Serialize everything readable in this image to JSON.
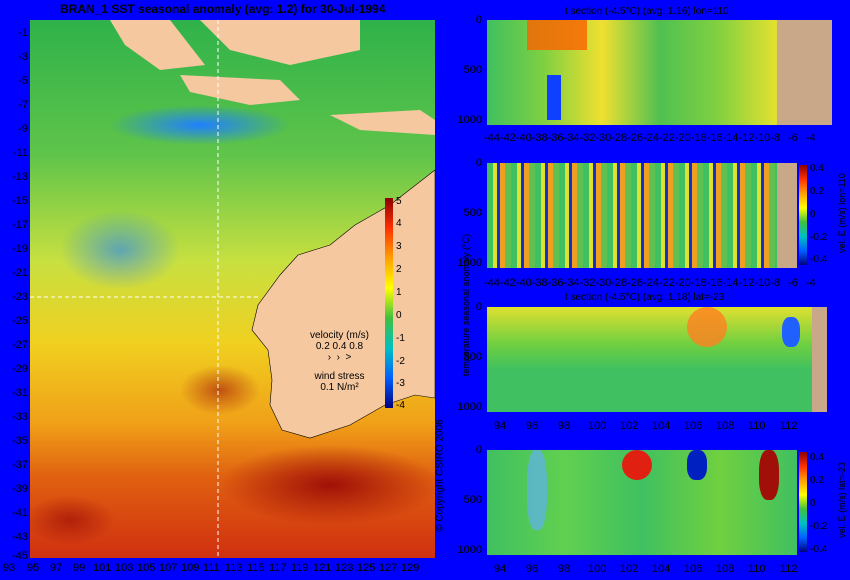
{
  "main_map": {
    "title": "BRAN_1  SST seasonal anomaly (avg: 1.2) for 30-Jul-1994",
    "lat_labels": [
      "-1",
      "-3",
      "-5",
      "-7",
      "-9",
      "-11",
      "-13",
      "-15",
      "-17",
      "-19",
      "-21",
      "-23",
      "-25",
      "-27",
      "-29",
      "-31",
      "-33",
      "-35",
      "-37",
      "-39",
      "-41",
      "-43",
      "-45"
    ],
    "lon_labels": [
      "93",
      "95",
      "97",
      "99",
      "101",
      "103",
      "105",
      "107",
      "109",
      "111",
      "113",
      "115",
      "117",
      "119",
      "121",
      "123",
      "125",
      "127",
      "129"
    ],
    "legend": {
      "velocity_label": "velocity (m/s)",
      "velocity_scale": "0.2 0.4 0.8",
      "wind_label": "wind stress",
      "wind_scale": "0.1 N/m²"
    },
    "colorbar": {
      "label": "temperature seasonal anomaly (°C)",
      "ticks": [
        "5",
        "4",
        "3",
        "2",
        "1",
        "0",
        "-1",
        "-2",
        "-3",
        "-4"
      ]
    },
    "copyright": "© Copyright CSIRO 2006"
  },
  "panels": [
    {
      "title": "t section (-4.5°C) (avg: 1.16) lon=110",
      "y_ticks": [
        "0",
        "500",
        "1000"
      ],
      "x_ticks": [
        "-44",
        "-42",
        "-40",
        "-38",
        "-36",
        "-34",
        "-32",
        "-30",
        "-28",
        "-26",
        "-24",
        "-22",
        "-20",
        "-18",
        "-16",
        "-14",
        "-12",
        "-10",
        "-8",
        "-6",
        "-4"
      ]
    },
    {
      "title": "",
      "y_ticks": [
        "0",
        "500",
        "1000"
      ],
      "x_ticks": [
        "-44",
        "-42",
        "-40",
        "-38",
        "-36",
        "-34",
        "-32",
        "-30",
        "-28",
        "-26",
        "-24",
        "-22",
        "-20",
        "-18",
        "-16",
        "-14",
        "-12",
        "-10",
        "-8",
        "-6",
        "-4"
      ],
      "colorbar_label": "vel. E (m/s) lon=110",
      "colorbar_ticks": [
        "0.4",
        "0.2",
        "0",
        "-0.2",
        "-0.4"
      ]
    },
    {
      "title": "t section (-4.5°C) (avg: 1.18) lat=-23",
      "y_ticks": [
        "0",
        "500",
        "1000"
      ],
      "x_ticks": [
        "94",
        "96",
        "98",
        "100",
        "102",
        "104",
        "106",
        "108",
        "110",
        "112"
      ]
    },
    {
      "title": "",
      "y_ticks": [
        "0",
        "500",
        "1000"
      ],
      "x_ticks": [
        "94",
        "96",
        "98",
        "100",
        "102",
        "104",
        "106",
        "108",
        "110",
        "112"
      ],
      "colorbar_label": "vel. E (m/s) lat=-23",
      "colorbar_ticks": [
        "0.4",
        "0.2",
        "0",
        "-0.2",
        "-0.4"
      ]
    }
  ],
  "colors": {
    "background": "#0000ff",
    "land": "#f5c8a0",
    "land_section": "#c8a888"
  }
}
